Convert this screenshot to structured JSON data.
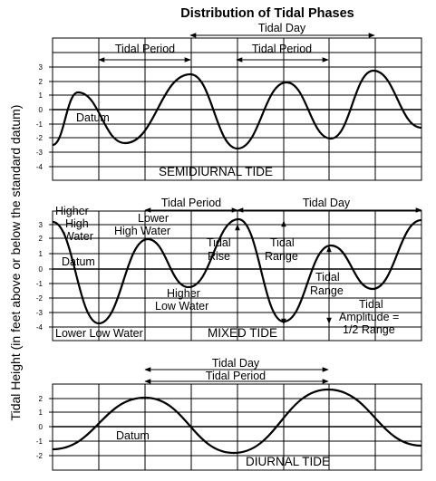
{
  "title": "Distribution of Tidal Phases",
  "y_axis_label": "Tidal Height (in feet above or below the standard datum)",
  "panels": [
    {
      "id": "semidiurnal",
      "caption": "SEMIDIURNAL TIDE",
      "y_ticks": [
        "3",
        "2",
        "1",
        "0",
        "-1",
        "-2",
        "-3",
        "-4"
      ],
      "labels": {
        "tidal_period_1": "Tidal Period",
        "tidal_period_2": "Tidal Period",
        "tidal_day": "Tidal Day",
        "datum": "Datum"
      }
    },
    {
      "id": "mixed",
      "caption": "MIXED TIDE",
      "y_ticks": [
        "3",
        "2",
        "1",
        "0",
        "-1",
        "-2",
        "-3",
        "-4"
      ],
      "labels": {
        "tidal_period": "Tidal Period",
        "tidal_day": "Tidal Day",
        "higher_high_water": [
          "Higher",
          "High",
          "Water"
        ],
        "lower_high_water": [
          "Lower",
          "High Water"
        ],
        "datum": "Datum",
        "higher_low_water": [
          "Higher",
          "Low Water"
        ],
        "lower_low_water": "Lower Low Water",
        "tidal_rise": [
          "Tidal",
          "Rise"
        ],
        "tidal_range_1": [
          "Tidal",
          "Range"
        ],
        "tidal_range_2": [
          "Tidal",
          "Range"
        ],
        "tidal_amplitude": [
          "Tidal",
          "Amplitude =",
          "1/2 Range"
        ]
      }
    },
    {
      "id": "diurnal",
      "caption": "DIURNAL TIDE",
      "y_ticks": [
        "2",
        "1",
        "0",
        "-1",
        "-2"
      ],
      "labels": {
        "tidal_day": "Tidal Day",
        "tidal_period": "Tidal Period",
        "datum": "Datum"
      }
    }
  ]
}
